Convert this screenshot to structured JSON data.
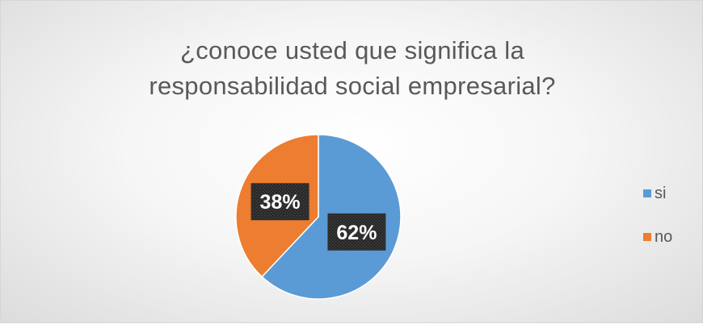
{
  "chart_data": {
    "type": "pie",
    "title_lines": [
      "¿conoce usted que significa la",
      "responsabilidad social empresarial?"
    ],
    "categories": [
      "si",
      "no"
    ],
    "values": [
      62,
      38
    ],
    "data_labels": [
      "62%",
      "38%"
    ],
    "colors": [
      "#5b9bd5",
      "#ed7d31"
    ],
    "legend_position": "right"
  }
}
